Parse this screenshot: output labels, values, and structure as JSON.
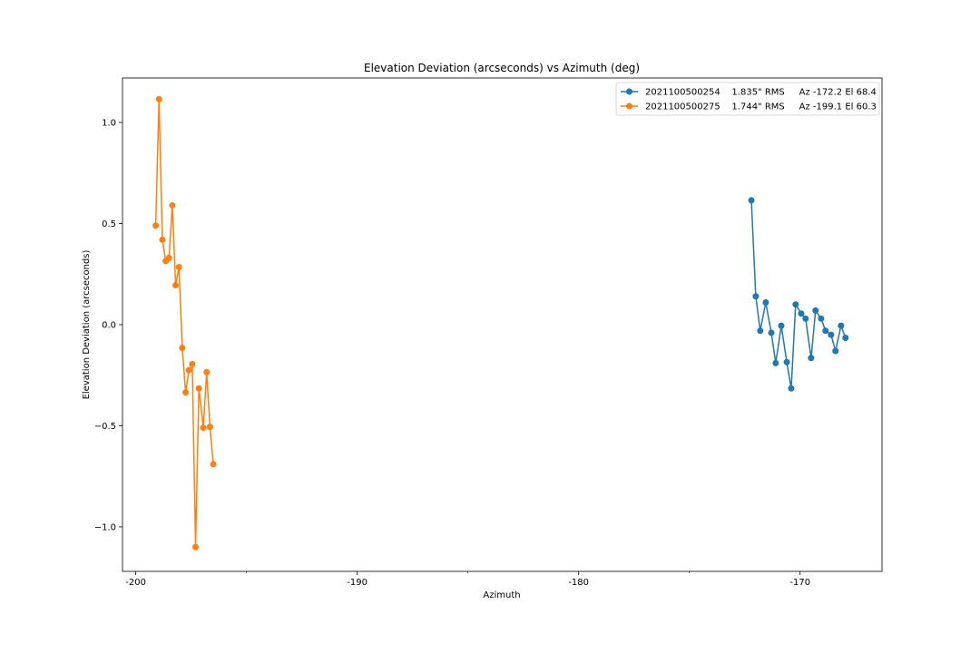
{
  "chart_data": {
    "type": "line",
    "title": "Elevation Deviation (arcseconds) vs Azimuth (deg)",
    "xlabel": "Azimuth",
    "ylabel": "Elevation Deviation (arcseconds)",
    "xlim": [
      -200.6,
      -166.3
    ],
    "ylim": [
      -1.22,
      1.22
    ],
    "xticks": [
      -200,
      -190,
      -180,
      -170
    ],
    "xtick_labels": [
      "-200",
      "-190",
      "-180",
      "-170"
    ],
    "xminor_ticks": [
      -195,
      -185,
      -175
    ],
    "yticks": [
      -1.0,
      -0.5,
      0.0,
      0.5,
      1.0
    ],
    "ytick_labels": [
      "−1.0",
      "−0.5",
      "0.0",
      "0.5",
      "1.0"
    ],
    "grid": false,
    "legend_position": "top-right",
    "series": [
      {
        "name": "2021100500254    1.835\" RMS     Az -172.2 El 68.4",
        "color": "#1f77b4",
        "x": [
          -172.2,
          -172.0,
          -171.8,
          -171.55,
          -171.3,
          -171.1,
          -170.85,
          -170.6,
          -170.4,
          -170.2,
          -169.95,
          -169.75,
          -169.5,
          -169.3,
          -169.05,
          -168.85,
          -168.6,
          -168.4,
          -168.15,
          -167.95
        ],
        "y": [
          0.615,
          0.14,
          -0.03,
          0.11,
          -0.04,
          -0.19,
          -0.005,
          -0.185,
          -0.315,
          0.1,
          0.055,
          0.03,
          -0.165,
          0.07,
          0.03,
          -0.03,
          -0.05,
          -0.13,
          -0.005,
          -0.065
        ]
      },
      {
        "name": "2021100500275    1.744\" RMS     Az -199.1 El 60.3",
        "color": "#ff7f0e",
        "x": [
          -199.1,
          -198.95,
          -198.8,
          -198.65,
          -198.5,
          -198.35,
          -198.2,
          -198.05,
          -197.9,
          -197.75,
          -197.6,
          -197.45,
          -197.3,
          -197.15,
          -196.95,
          -196.8,
          -196.65,
          -196.5
        ],
        "y": [
          0.49,
          1.115,
          0.42,
          0.315,
          0.33,
          0.59,
          0.195,
          0.285,
          -0.115,
          -0.335,
          -0.225,
          -0.195,
          -1.1,
          -0.315,
          -0.51,
          -0.235,
          -0.505,
          -0.69
        ]
      }
    ]
  }
}
